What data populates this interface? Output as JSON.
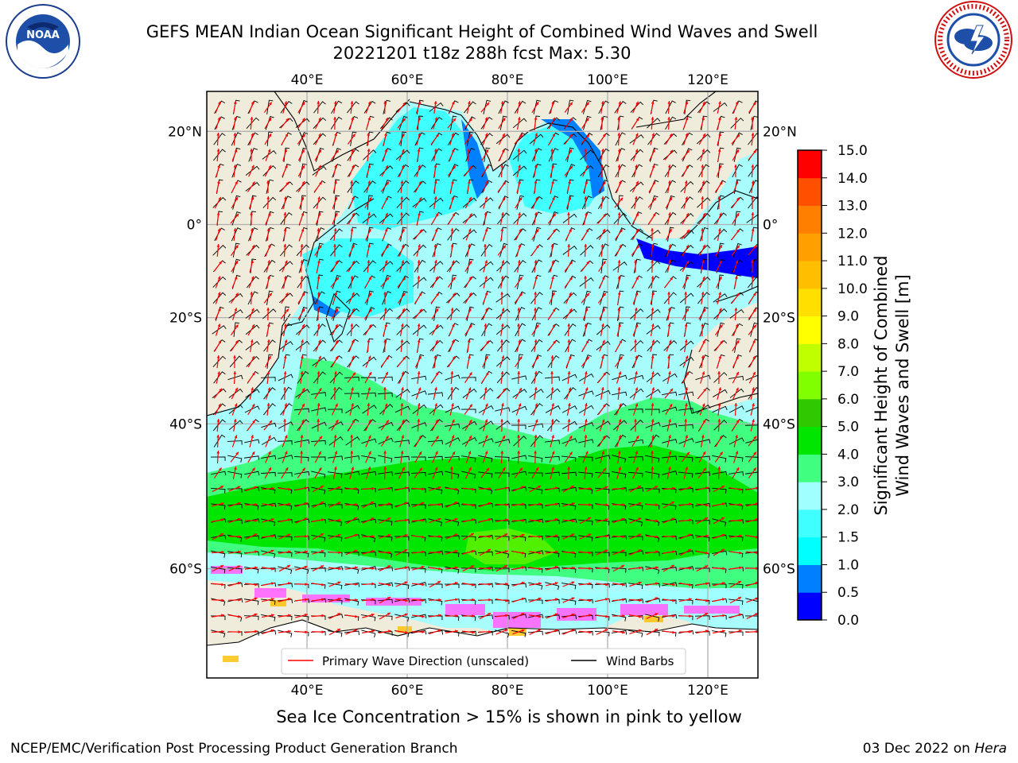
{
  "title": {
    "line1": "GEFS MEAN Indian Ocean Significant Height of Combined Wind Waves and Swell",
    "line2": "20221201 t18z 288h fcst   Max: 5.30"
  },
  "logos": {
    "left": {
      "name": "noaa-logo",
      "text": "NOAA",
      "ring_text": "NATIONAL OCEANIC AND ATMOSPHERIC ADMINISTRATION · U.S. DEPARTMENT OF COMMERCE"
    },
    "right": {
      "name": "nws-logo",
      "ring_text": "NATIONAL WEATHER SERVICE"
    }
  },
  "map": {
    "lon_ticks_top": [
      "40°E",
      "60°E",
      "80°E",
      "100°E",
      "120°E"
    ],
    "lon_ticks_bottom": [
      "40°E",
      "60°E",
      "80°E",
      "100°E",
      "120°E"
    ],
    "lat_ticks_left": [
      "20°N",
      "0°",
      "20°S",
      "40°S",
      "60°S"
    ],
    "lat_ticks_right": [
      "20°N",
      "0°",
      "20°S",
      "40°S",
      "60°S"
    ],
    "lon_values": [
      40,
      60,
      80,
      100,
      120
    ],
    "lat_values": [
      20,
      0,
      -20,
      -40,
      -60
    ],
    "extent": {
      "lon_min": 20,
      "lon_max": 130,
      "lat_min": -70,
      "lat_max": 28
    },
    "colors": {
      "land": "#efecdc",
      "ocean_default": "#a8fcfc",
      "grid": "#b0b0b0",
      "arrow": "#ff0000",
      "barb": "#000000",
      "ice": "#ff66ff",
      "coast": "#000000"
    }
  },
  "legend": {
    "items": [
      {
        "label": "Primary Wave Direction (unscaled)",
        "color": "#ff0000"
      },
      {
        "label": "Wind Barbs",
        "color": "#000000"
      }
    ]
  },
  "colorbar": {
    "label_line1": "Significant Height of Combined",
    "label_line2": "Wind Waves and Swell [m]",
    "tick_labels": [
      "0.0",
      "0.5",
      "1.0",
      "1.5",
      "2.0",
      "3.0",
      "4.0",
      "5.0",
      "6.0",
      "7.0",
      "8.0",
      "9.0",
      "10.0",
      "11.0",
      "12.0",
      "13.0",
      "14.0",
      "15.0"
    ],
    "colors": [
      "#0000ff",
      "#0080ff",
      "#00ffff",
      "#40ffff",
      "#a0ffff",
      "#40ff80",
      "#00e600",
      "#30c800",
      "#80ff00",
      "#c0ff00",
      "#ffff00",
      "#ffdf00",
      "#ffbf00",
      "#ff9f00",
      "#ff7f00",
      "#ff5000",
      "#ff0000"
    ]
  },
  "ice_note": "Sea Ice Concentration > 15% is shown in pink to yellow",
  "footer": {
    "left": "NCEP/EMC/Verification Post Processing Product Generation Branch",
    "right_prefix": "03 Dec 2022 on ",
    "right_machine": "Hera"
  }
}
